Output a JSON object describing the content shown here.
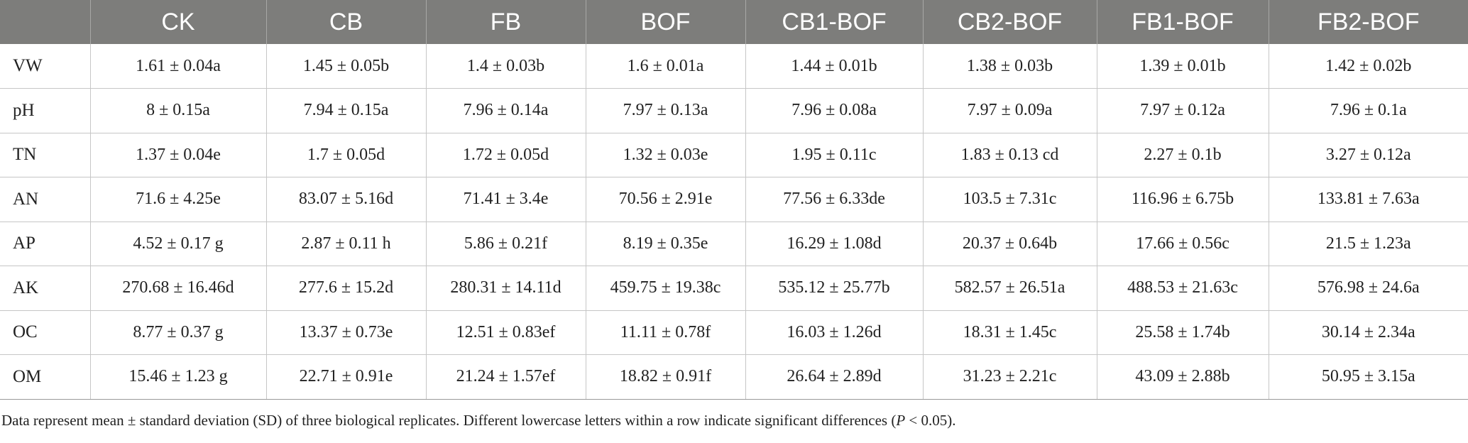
{
  "table": {
    "headers": [
      "",
      "CK",
      "CB",
      "FB",
      "BOF",
      "CB1-BOF",
      "CB2-BOF",
      "FB1-BOF",
      "FB2-BOF"
    ],
    "rows": [
      {
        "label": "VW",
        "cells": [
          "1.61 ± 0.04a",
          "1.45 ± 0.05b",
          "1.4 ± 0.03b",
          "1.6 ± 0.01a",
          "1.44 ± 0.01b",
          "1.38 ± 0.03b",
          "1.39 ± 0.01b",
          "1.42 ± 0.02b"
        ]
      },
      {
        "label": "pH",
        "cells": [
          "8 ± 0.15a",
          "7.94 ± 0.15a",
          "7.96 ± 0.14a",
          "7.97 ± 0.13a",
          "7.96 ± 0.08a",
          "7.97 ± 0.09a",
          "7.97 ± 0.12a",
          "7.96 ± 0.1a"
        ]
      },
      {
        "label": "TN",
        "cells": [
          "1.37 ± 0.04e",
          "1.7 ± 0.05d",
          "1.72 ± 0.05d",
          "1.32 ± 0.03e",
          "1.95 ± 0.11c",
          "1.83 ± 0.13 cd",
          "2.27 ± 0.1b",
          "3.27 ± 0.12a"
        ]
      },
      {
        "label": "AN",
        "cells": [
          "71.6 ± 4.25e",
          "83.07 ± 5.16d",
          "71.41 ± 3.4e",
          "70.56 ± 2.91e",
          "77.56 ± 6.33de",
          "103.5 ± 7.31c",
          "116.96 ± 6.75b",
          "133.81 ± 7.63a"
        ]
      },
      {
        "label": "AP",
        "cells": [
          "4.52 ± 0.17 g",
          "2.87 ± 0.11 h",
          "5.86 ± 0.21f",
          "8.19 ± 0.35e",
          "16.29 ± 1.08d",
          "20.37 ± 0.64b",
          "17.66 ± 0.56c",
          "21.5 ± 1.23a"
        ]
      },
      {
        "label": "AK",
        "cells": [
          "270.68 ± 16.46d",
          "277.6 ± 15.2d",
          "280.31 ± 14.11d",
          "459.75 ± 19.38c",
          "535.12 ± 25.77b",
          "582.57 ± 26.51a",
          "488.53 ± 21.63c",
          "576.98 ± 24.6a"
        ]
      },
      {
        "label": "OC",
        "cells": [
          "8.77 ± 0.37 g",
          "13.37 ± 0.73e",
          "12.51 ± 0.83ef",
          "11.11 ± 0.78f",
          "16.03 ± 1.26d",
          "18.31 ± 1.45c",
          "25.58 ± 1.74b",
          "30.14 ± 2.34a"
        ]
      },
      {
        "label": "OM",
        "cells": [
          "15.46 ± 1.23 g",
          "22.71 ± 0.91e",
          "21.24 ± 1.57ef",
          "18.82 ± 0.91f",
          "26.64 ± 2.89d",
          "31.23 ± 2.21c",
          "43.09 ± 2.88b",
          "50.95 ± 3.15a"
        ]
      }
    ]
  },
  "footnote": {
    "text_before": "Data represent mean ± standard deviation (SD) of three biological replicates. Different lowercase letters within a row indicate significant differences (",
    "italic": "P",
    "text_after": " < 0.05)."
  },
  "colors": {
    "header_bg": "#7d7d7b",
    "header_text": "#ffffff",
    "grid": "#c6c6c6"
  }
}
